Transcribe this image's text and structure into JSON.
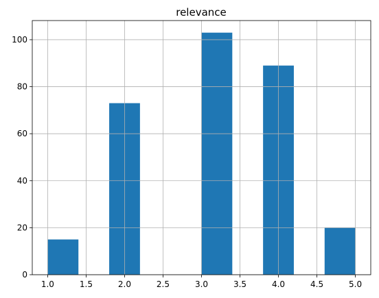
{
  "chart_data": {
    "type": "bar",
    "title": "relevance",
    "xlabel": "",
    "ylabel": "",
    "bins": 10,
    "bars": [
      {
        "x_start": 1.0,
        "x_end": 1.4,
        "count": 15
      },
      {
        "x_start": 1.8,
        "x_end": 2.2,
        "count": 73
      },
      {
        "x_start": 2.2,
        "x_end": 2.6,
        "count": 0
      },
      {
        "x_start": 2.6,
        "x_end": 3.0,
        "count": 0
      },
      {
        "x_start": 3.0,
        "x_end": 3.4,
        "count": 103
      },
      {
        "x_start": 3.8,
        "x_end": 4.2,
        "count": 89
      },
      {
        "x_start": 4.6,
        "x_end": 5.0,
        "count": 20
      }
    ],
    "xlim": [
      0.8,
      5.2
    ],
    "ylim": [
      0,
      108.15
    ],
    "xticks": [
      "1.0",
      "1.5",
      "2.0",
      "2.5",
      "3.0",
      "3.5",
      "4.0",
      "4.5",
      "5.0"
    ],
    "yticks": [
      "0",
      "20",
      "40",
      "60",
      "80",
      "100"
    ],
    "grid": true,
    "legend": "none",
    "colors": {
      "bar": "#1f77b4",
      "grid": "#b0b0b0",
      "axis": "#000000"
    }
  }
}
